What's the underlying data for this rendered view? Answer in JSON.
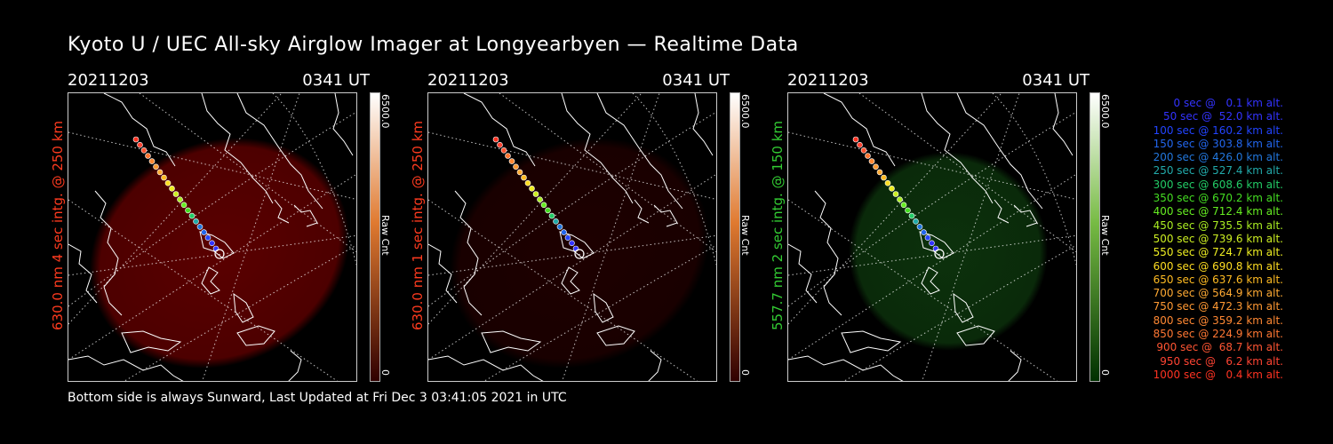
{
  "page_title": "Kyoto U / UEC All-sky Airglow Imager at Longyearbyen — Realtime Data",
  "footer": "Bottom side is always Sunward, Last Updated at Fri Dec  3 03:41:05 2021 in UTC",
  "panels": [
    {
      "date": "20211203",
      "time": "0341 UT",
      "ylabel": "630.0 nm 4 sec intg. @ 250 km",
      "label_color": "#ff3b1f",
      "glow_color": "#8b0000",
      "glow_opacity": 0.65,
      "colorbar_top": "#ffffff",
      "colorbar_mid": "#e07a30",
      "colorbar_bottom": "#300000",
      "colorbar_max": "6500.0",
      "colorbar_min": "0",
      "colorbar_unit": "Raw Cnt"
    },
    {
      "date": "20211203",
      "time": "0341 UT",
      "ylabel": "630.0 nm 1 sec intg. @ 250 km",
      "label_color": "#ff3b1f",
      "glow_color": "#2a0000",
      "glow_opacity": 0.7,
      "colorbar_top": "#ffffff",
      "colorbar_mid": "#e07a30",
      "colorbar_bottom": "#300000",
      "colorbar_max": "6500.0",
      "colorbar_min": "0",
      "colorbar_unit": "Raw Cnt"
    },
    {
      "date": "20211203",
      "time": "0341 UT",
      "ylabel": "557.7 nm 2 sec intg. @ 150 km",
      "label_color": "#33cc33",
      "glow_color": "#0e3a0e",
      "glow_opacity": 0.85,
      "colorbar_top": "#ffffff",
      "colorbar_mid": "#77bb44",
      "colorbar_bottom": "#003000",
      "colorbar_max": "6500.0",
      "colorbar_min": "0",
      "colorbar_unit": "Raw Cnt"
    }
  ],
  "legend": [
    {
      "text": "0 sec @   0.1 km alt.",
      "color": "#3333ff"
    },
    {
      "text": "50 sec @  52.0 km alt.",
      "color": "#3333ff"
    },
    {
      "text": "100 sec @ 160.2 km alt.",
      "color": "#2244ff"
    },
    {
      "text": "150 sec @ 303.8 km alt.",
      "color": "#2266ee"
    },
    {
      "text": "200 sec @ 426.0 km alt.",
      "color": "#2277dd"
    },
    {
      "text": "250 sec @ 527.4 km alt.",
      "color": "#22aaaa"
    },
    {
      "text": "300 sec @ 608.6 km alt.",
      "color": "#22cc66"
    },
    {
      "text": "350 sec @ 670.2 km alt.",
      "color": "#44dd22"
    },
    {
      "text": "400 sec @ 712.4 km alt.",
      "color": "#66ee22"
    },
    {
      "text": "450 sec @ 735.5 km alt.",
      "color": "#aaee22"
    },
    {
      "text": "500 sec @ 739.6 km alt.",
      "color": "#ccee22"
    },
    {
      "text": "550 sec @ 724.7 km alt.",
      "color": "#eeee22"
    },
    {
      "text": "600 sec @ 690.8 km alt.",
      "color": "#ffdd22"
    },
    {
      "text": "650 sec @ 637.6 km alt.",
      "color": "#ffbb22"
    },
    {
      "text": "700 sec @ 564.9 km alt.",
      "color": "#ffaa33"
    },
    {
      "text": "750 sec @ 472.3 km alt.",
      "color": "#ff9933"
    },
    {
      "text": "800 sec @ 359.2 km alt.",
      "color": "#ff8833"
    },
    {
      "text": "850 sec @ 224.9 km alt.",
      "color": "#ff7733"
    },
    {
      "text": "900 sec @  68.7 km alt.",
      "color": "#ff5533"
    },
    {
      "text": "950 sec @   6.2 km alt.",
      "color": "#ff4433"
    },
    {
      "text": "1000 sec @   0.4 km alt.",
      "color": "#ff3322"
    }
  ]
}
